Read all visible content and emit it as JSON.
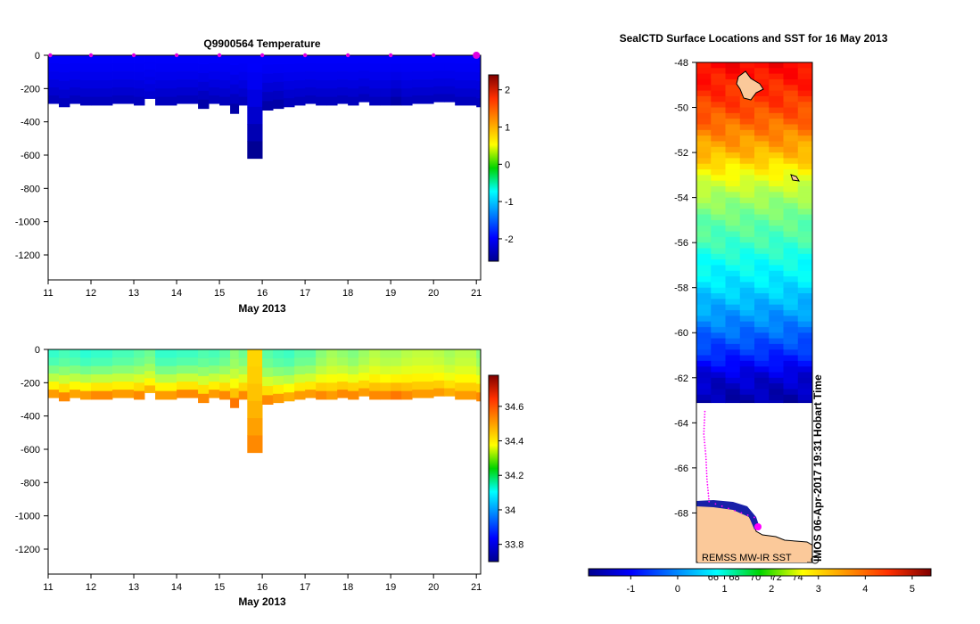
{
  "chart_data": [
    {
      "type": "heatmap",
      "title": "Q9900564  Temperature",
      "xlabel": "May 2013",
      "ylabel": "",
      "x_ticks": [
        "11",
        "12",
        "13",
        "14",
        "15",
        "16",
        "17",
        "18",
        "19",
        "20",
        "21"
      ],
      "x_range": [
        11,
        21.1
      ],
      "y_ticks": [
        "0",
        "-200",
        "-400",
        "-600",
        "-800",
        "-1000",
        "-1200"
      ],
      "y_tick_values": [
        0,
        -200,
        -400,
        -600,
        -800,
        -1000,
        -1200
      ],
      "y_range": [
        -1350,
        0
      ],
      "colorbar": {
        "ticks": [
          "-2",
          "-1",
          "0",
          "1",
          "2"
        ],
        "tick_values": [
          -2,
          -1,
          0,
          1,
          2
        ],
        "range": [
          -2.6,
          2.4
        ]
      },
      "profile_markers": [
        11.05,
        12,
        13,
        14,
        15,
        16,
        17,
        18,
        19,
        20,
        21
      ],
      "highlight_marker": 21,
      "profiles": {
        "times": [
          11.0,
          11.25,
          11.5,
          11.75,
          12.0,
          12.5,
          13.0,
          13.25,
          13.5,
          14.0,
          14.5,
          14.75,
          15.0,
          15.25,
          15.45,
          15.65,
          16.0,
          16.25,
          16.5,
          16.75,
          17.0,
          17.25,
          17.5,
          17.75,
          18.0,
          18.25,
          18.5,
          18.75,
          19.0,
          19.25,
          19.5,
          20.0,
          20.25,
          20.5,
          21.0,
          21.1
        ],
        "max_depths": [
          -290,
          -310,
          -290,
          -300,
          -300,
          -290,
          -300,
          -260,
          -300,
          -290,
          -320,
          -290,
          -300,
          -350,
          -300,
          -620,
          -330,
          -320,
          -310,
          -300,
          -290,
          -300,
          -300,
          -290,
          -300,
          -280,
          -300,
          -300,
          -300,
          -300,
          -290,
          -280,
          -280,
          -300,
          -310,
          -300
        ],
        "surface_values": [
          -2.0,
          -2.0,
          -2.0,
          -2.0,
          -2.0,
          -2.0,
          -2.0,
          -2.0,
          -2.0,
          -2.0,
          -2.0,
          -2.0,
          -2.0,
          -2.0,
          -2.0,
          -2.0,
          -2.0,
          -2.0,
          -2.0,
          -2.0,
          -2.0,
          -2.0,
          -2.0,
          -2.0,
          -2.0,
          -2.0,
          -2.0,
          -2.0,
          -2.0,
          -2.0,
          -2.0,
          -2.0,
          -2.0,
          -2.0,
          -2.0,
          -2.0
        ],
        "deep_values": [
          -2.3,
          -2.3,
          -2.3,
          -2.3,
          -2.3,
          -2.3,
          -2.3,
          -2.2,
          -2.3,
          -2.3,
          -2.4,
          -2.3,
          -2.3,
          -2.4,
          -2.3,
          -2.5,
          -2.4,
          -2.4,
          -2.3,
          -2.3,
          -2.3,
          -2.3,
          -2.3,
          -2.3,
          -2.3,
          -2.3,
          -2.3,
          -2.3,
          -2.4,
          -2.3,
          -2.3,
          -2.3,
          -2.3,
          -2.3,
          -2.3,
          -2.3
        ]
      }
    },
    {
      "type": "heatmap",
      "title": "",
      "xlabel": "May 2013",
      "ylabel": "",
      "x_ticks": [
        "11",
        "12",
        "13",
        "14",
        "15",
        "16",
        "17",
        "18",
        "19",
        "20",
        "21"
      ],
      "x_range": [
        11,
        21.1
      ],
      "y_ticks": [
        "0",
        "-200",
        "-400",
        "-600",
        "-800",
        "-1000",
        "-1200"
      ],
      "y_tick_values": [
        0,
        -200,
        -400,
        -600,
        -800,
        -1000,
        -1200
      ],
      "y_range": [
        -1350,
        0
      ],
      "colorbar": {
        "ticks": [
          "33.8",
          "34",
          "34.2",
          "34.4",
          "34.6"
        ],
        "tick_values": [
          33.8,
          34.0,
          34.2,
          34.4,
          34.6
        ],
        "range": [
          33.7,
          34.78
        ]
      },
      "profiles": {
        "times": [
          11.0,
          11.25,
          11.5,
          11.75,
          12.0,
          12.5,
          13.0,
          13.25,
          13.5,
          14.0,
          14.5,
          14.75,
          15.0,
          15.25,
          15.45,
          15.65,
          16.0,
          16.25,
          16.5,
          16.75,
          17.0,
          17.25,
          17.5,
          17.75,
          18.0,
          18.25,
          18.5,
          18.75,
          19.0,
          19.25,
          19.5,
          20.0,
          20.25,
          20.5,
          21.0,
          21.1
        ],
        "max_depths": [
          -290,
          -310,
          -290,
          -300,
          -300,
          -290,
          -300,
          -260,
          -300,
          -290,
          -320,
          -290,
          -300,
          -350,
          -300,
          -620,
          -330,
          -320,
          -310,
          -300,
          -290,
          -300,
          -300,
          -290,
          -300,
          -280,
          -300,
          -300,
          -300,
          -300,
          -290,
          -280,
          -280,
          -300,
          -310,
          -300
        ],
        "surface_values": [
          34.16,
          34.18,
          34.17,
          34.15,
          34.16,
          34.18,
          34.2,
          34.22,
          34.16,
          34.17,
          34.19,
          34.18,
          34.2,
          34.25,
          34.22,
          34.42,
          34.2,
          34.18,
          34.17,
          34.2,
          34.2,
          34.25,
          34.28,
          34.26,
          34.24,
          34.27,
          34.3,
          34.28,
          34.28,
          34.3,
          34.31,
          34.3,
          34.28,
          34.3,
          34.25,
          34.27
        ],
        "deep_values": [
          34.48,
          34.5,
          34.47,
          34.48,
          34.5,
          34.48,
          34.5,
          34.45,
          34.48,
          34.5,
          34.5,
          34.48,
          34.5,
          34.52,
          34.5,
          34.5,
          34.5,
          34.48,
          34.46,
          34.48,
          34.48,
          34.5,
          34.48,
          34.5,
          34.5,
          34.48,
          34.5,
          34.5,
          34.52,
          34.5,
          34.48,
          34.48,
          34.46,
          34.48,
          34.5,
          34.48
        ]
      }
    },
    {
      "type": "heatmap",
      "title": "SealCTD Surface Locations and SST for 16 May 2013",
      "xlabel": "",
      "ylabel": "",
      "x_ticks": [
        "66",
        "68",
        "70",
        "72",
        "74"
      ],
      "x_range": [
        64.4,
        75.4
      ],
      "y_ticks": [
        "-48",
        "-50",
        "-52",
        "-54",
        "-56",
        "-58",
        "-60",
        "-62",
        "-64",
        "-66",
        "-68"
      ],
      "y_tick_values": [
        -48,
        -50,
        -52,
        -54,
        -56,
        -58,
        -60,
        -62,
        -64,
        -66,
        -68
      ],
      "y_range": [
        -70.2,
        -48
      ],
      "colorbar": {
        "ticks": [
          "-1",
          "0",
          "1",
          "2",
          "3",
          "4",
          "5"
        ],
        "tick_values": [
          -1,
          0,
          1,
          2,
          3,
          4,
          5
        ],
        "range": [
          -1.9,
          5.4
        ]
      },
      "sst_profile_lat": [
        -48,
        -50,
        -52,
        -54,
        -55,
        -56,
        -57,
        -58,
        -59,
        -60,
        -61,
        -62,
        -63.1
      ],
      "sst_profile_val": [
        4.5,
        4.0,
        3.2,
        2.0,
        1.6,
        1.3,
        0.9,
        0.6,
        0.2,
        -0.2,
        -0.7,
        -1.3,
        -1.6
      ],
      "track_lat": [
        -63.5,
        -64.5,
        -65.5,
        -66.5,
        -67.5,
        -68.3
      ],
      "track_lon": [
        65.2,
        65.1,
        65.3,
        65.4,
        65.6,
        70.5
      ],
      "credit": "REMSS MW-IR SST",
      "timestamp": "IMOS 06-Apr-2017 19:31 Hobart Time"
    }
  ]
}
